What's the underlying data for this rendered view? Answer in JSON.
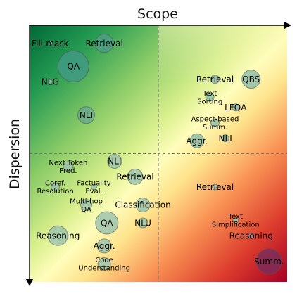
{
  "chart_data": {
    "type": "scatter",
    "xlabel": "Scope",
    "ylabel": "Dispersion",
    "xlim": [
      0,
      1
    ],
    "ylim": [
      0,
      1
    ],
    "grid": false,
    "legend": "none",
    "quadrant_dividers": {
      "x": 0.5,
      "y": 0.5
    },
    "background_colormap": "RdYlGn",
    "points": [
      {
        "label": "Fill-mask",
        "x": 0.08,
        "y": 0.93,
        "size": 3,
        "point_color": "#9ac3b0"
      },
      {
        "label": "Retrieval",
        "x": 0.29,
        "y": 0.93,
        "size": 13,
        "point_color": "#4e9d86"
      },
      {
        "label": "QA",
        "x": 0.17,
        "y": 0.84,
        "size": 22,
        "point_color": "#3f9a83"
      },
      {
        "label": "NLG",
        "x": 0.08,
        "y": 0.78,
        "size": 3,
        "point_color": "#9ac3b0"
      },
      {
        "label": "NLI",
        "x": 0.22,
        "y": 0.65,
        "size": 12,
        "point_color": "#6aab8e"
      },
      {
        "label": "Retrieval",
        "x": 0.72,
        "y": 0.79,
        "size": 6,
        "point_color": "#8fbea8"
      },
      {
        "label": "QBS",
        "x": 0.86,
        "y": 0.79,
        "size": 13,
        "point_color": "#8fbea8"
      },
      {
        "label": "Text\nSorting",
        "x": 0.7,
        "y": 0.72,
        "size": 6,
        "point_color": "#8fbea8"
      },
      {
        "label": "LFQA",
        "x": 0.8,
        "y": 0.68,
        "size": 5,
        "point_color": "#8fbea8"
      },
      {
        "label": "Aspect-based\nSumm.",
        "x": 0.72,
        "y": 0.62,
        "size": 6,
        "point_color": "#8fbea8"
      },
      {
        "label": "Aggr.",
        "x": 0.65,
        "y": 0.55,
        "size": 10,
        "point_color": "#8fbea8"
      },
      {
        "label": "NLI",
        "x": 0.76,
        "y": 0.56,
        "size": 5,
        "point_color": "#8fbea8"
      },
      {
        "label": "Next Token\nPred.",
        "x": 0.15,
        "y": 0.45,
        "size": 7,
        "point_color": "#9ec4ad"
      },
      {
        "label": "NLI",
        "x": 0.33,
        "y": 0.47,
        "size": 10,
        "point_color": "#9ec4ad"
      },
      {
        "label": "Retrieval",
        "x": 0.41,
        "y": 0.41,
        "size": 11,
        "point_color": "#9ec4ad"
      },
      {
        "label": "Coref.\nResolution",
        "x": 0.1,
        "y": 0.37,
        "size": 6,
        "point_color": "#9ec4ad"
      },
      {
        "label": "Factuality\nEval.",
        "x": 0.25,
        "y": 0.37,
        "size": 4,
        "point_color": "#9ec4ad"
      },
      {
        "label": "Multi-hop\nQA",
        "x": 0.22,
        "y": 0.3,
        "size": 8,
        "point_color": "#9ec4ad"
      },
      {
        "label": "Classification",
        "x": 0.44,
        "y": 0.3,
        "size": 10,
        "point_color": "#9ec4ad"
      },
      {
        "label": "QA",
        "x": 0.3,
        "y": 0.23,
        "size": 16,
        "point_color": "#9ec4ad"
      },
      {
        "label": "NLU",
        "x": 0.44,
        "y": 0.23,
        "size": 7,
        "point_color": "#9ec4ad"
      },
      {
        "label": "Reasoning",
        "x": 0.11,
        "y": 0.18,
        "size": 14,
        "point_color": "#9ec4ad"
      },
      {
        "label": "Aggr.",
        "x": 0.29,
        "y": 0.14,
        "size": 10,
        "point_color": "#9ec4ad"
      },
      {
        "label": "Code\nUnderstanding",
        "x": 0.29,
        "y": 0.07,
        "size": 9,
        "point_color": "#9ec4ad"
      },
      {
        "label": "Retrieval",
        "x": 0.72,
        "y": 0.37,
        "size": 4,
        "point_color": "#9ec4ad"
      },
      {
        "label": "Text\nSimplification",
        "x": 0.8,
        "y": 0.24,
        "size": 4,
        "point_color": "#9ec4ad"
      },
      {
        "label": "Reasoning",
        "x": 0.86,
        "y": 0.18,
        "size": 4,
        "point_color": "#a07f96"
      },
      {
        "label": "Summ.",
        "x": 0.93,
        "y": 0.08,
        "size": 18,
        "point_color": "#7b2d59"
      }
    ]
  }
}
